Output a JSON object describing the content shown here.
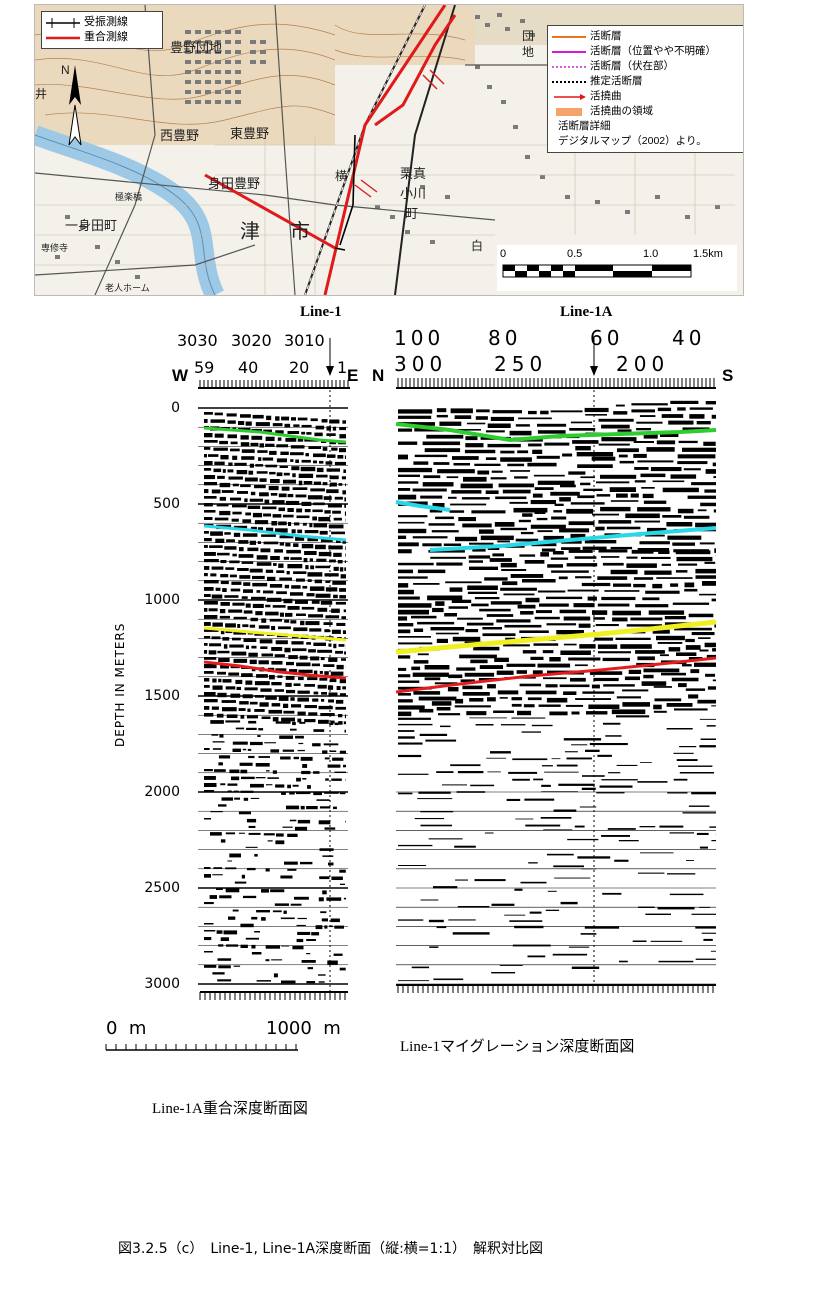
{
  "map": {
    "legend_left": [
      {
        "label": "受振測線",
        "icon": "receiver-line-icon",
        "color": "#000000"
      },
      {
        "label": "重合測線",
        "icon": "cmp-line-icon",
        "color": "#e0191b"
      }
    ],
    "legend_right": [
      {
        "label": "活断層",
        "icon": "active-fault-icon",
        "color": "#e8741e"
      },
      {
        "label": "活断層（位置やや不明確）",
        "icon": "uncertain-fault-icon",
        "color": "#d21bd2"
      },
      {
        "label": "活断層（伏在部）",
        "icon": "concealed-fault-icon",
        "color": "#e05ae0"
      },
      {
        "label": "推定活断層",
        "icon": "inferred-fault-icon",
        "color": "#000000"
      },
      {
        "label": "活撓曲",
        "icon": "flexure-arrow-icon",
        "color": "#e0191b"
      },
      {
        "label": "活撓曲の領域",
        "icon": "flexure-area-icon",
        "color": "#f4a46a"
      }
    ],
    "legend_source": [
      "活断層詳細",
      "デジタルマップ（2002）より。"
    ],
    "place_labels": [
      "豊野団地",
      "西豊野",
      "東豊野",
      "身田豊野",
      "一身田町",
      "津",
      "市",
      "栗真",
      "小川",
      "町",
      "団",
      "地",
      "白",
      "井",
      "極楽橋",
      "専修寺",
      "老人ホーム",
      "横"
    ],
    "north": "N",
    "scale": {
      "ticks": [
        "0",
        "0.5",
        "1.0",
        "1.5km"
      ]
    }
  },
  "sections": {
    "line1_title": "Line-1",
    "line1a_title": "Line-1A",
    "left": {
      "top_axis": [
        "3030",
        "3020",
        "3010"
      ],
      "bottom_axis": [
        "59",
        "40",
        "20",
        "1"
      ],
      "west": "W",
      "east": "E",
      "depth_ticks": [
        "0",
        "500",
        "1000",
        "1500",
        "2000",
        "2500",
        "3000"
      ],
      "depth_label": "DEPTH IN METERS",
      "hscale": [
        "0  m",
        "1000  m"
      ],
      "caption": "Line-1A重合深度断面図"
    },
    "right": {
      "top_axis": [
        "100",
        "80",
        "60",
        "40"
      ],
      "bottom_axis": [
        "300",
        "250",
        "200"
      ],
      "north": "N",
      "south": "S",
      "caption": "Line-1マイグレーション深度断面図"
    },
    "horizon_colors": {
      "green": "#2ecc2e",
      "cyan": "#28d8e6",
      "yellow": "#f0f020",
      "red": "#e41c1c"
    }
  },
  "figure_caption": "図3.2.5（c）　Line-1, Line-1A深度断面（縦:横=1:1）　解釈対比図"
}
